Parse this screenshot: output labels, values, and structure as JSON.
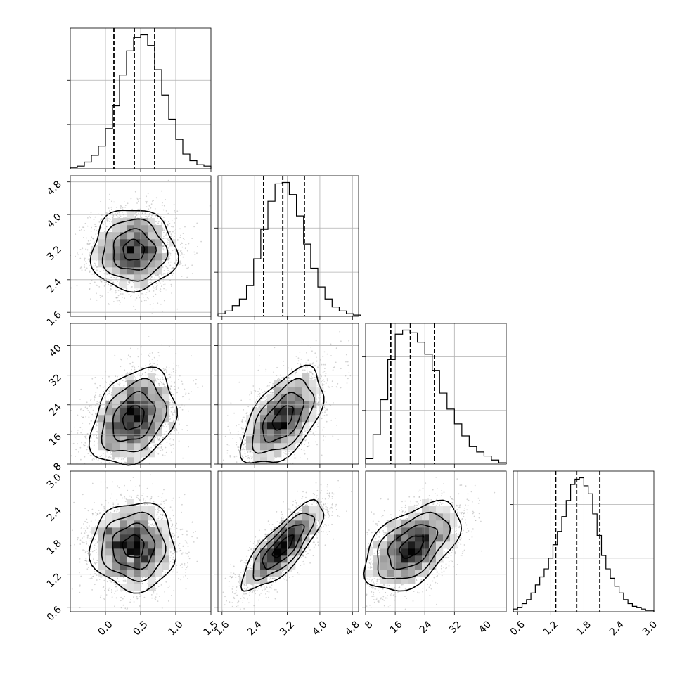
{
  "chart_data": {
    "type": "corner",
    "title": "",
    "parameters": [
      {
        "index": 0,
        "range": [
          -0.5,
          1.5
        ],
        "ticks": [
          0.0,
          0.5,
          1.0,
          1.5
        ],
        "tick_labels": [
          "0.0",
          "0.5",
          "1.0",
          "1.5"
        ],
        "quantiles": [
          0.12,
          0.41,
          0.7
        ]
      },
      {
        "index": 1,
        "range": [
          1.5,
          4.95
        ],
        "ticks": [
          1.6,
          2.4,
          3.2,
          4.0,
          4.8
        ],
        "tick_labels": [
          "1.6",
          "2.4",
          "3.2",
          "4.0",
          "4.8"
        ],
        "quantiles": [
          2.62,
          3.09,
          3.62
        ]
      },
      {
        "index": 2,
        "range": [
          8,
          46
        ],
        "ticks": [
          8,
          16,
          24,
          32,
          40
        ],
        "tick_labels": [
          "8",
          "16",
          "24",
          "32",
          "40"
        ],
        "quantiles": [
          14.8,
          20.1,
          26.6
        ]
      },
      {
        "index": 3,
        "range": [
          0.52,
          3.07
        ],
        "ticks": [
          0.6,
          1.2,
          1.8,
          2.4,
          3.0
        ],
        "tick_labels": [
          "0.6",
          "1.2",
          "1.8",
          "2.4",
          "3.0"
        ],
        "quantiles": [
          1.29,
          1.67,
          2.09
        ]
      }
    ],
    "histograms": [
      {
        "param": 0,
        "bin_edges": [
          -0.5,
          -0.4,
          -0.3,
          -0.2,
          -0.1,
          0.0,
          0.1,
          0.2,
          0.3,
          0.4,
          0.5,
          0.6,
          0.7,
          0.8,
          0.9,
          1.0,
          1.1,
          1.2,
          1.3,
          1.4,
          1.5
        ],
        "counts": [
          1,
          2,
          5,
          10,
          17,
          30,
          47,
          70,
          88,
          98,
          100,
          92,
          74,
          55,
          37,
          22,
          11,
          6,
          3,
          2
        ],
        "y_gridlines": [
          33,
          66
        ]
      },
      {
        "param": 1,
        "bin_edges": [
          1.5,
          1.675,
          1.85,
          2.025,
          2.2,
          2.375,
          2.55,
          2.725,
          2.9,
          3.075,
          3.25,
          3.425,
          3.6,
          3.775,
          3.95,
          4.125,
          4.3,
          4.475,
          4.65,
          4.825,
          5.0
        ],
        "counts": [
          2,
          4,
          8,
          13,
          23,
          43,
          65,
          86,
          99,
          100,
          91,
          75,
          54,
          36,
          22,
          13,
          7,
          4,
          2,
          1
        ],
        "y_gridlines": [
          33,
          66
        ]
      },
      {
        "param": 2,
        "bin_edges": [
          8,
          10,
          12,
          14,
          16,
          18,
          20,
          22,
          24,
          26,
          28,
          30,
          32,
          34,
          36,
          38,
          40,
          42,
          44,
          46
        ],
        "counts": [
          4,
          22,
          48,
          78,
          97,
          100,
          98,
          91,
          82,
          70,
          53,
          41,
          30,
          21,
          13,
          9,
          6,
          3,
          1
        ],
        "y_gridlines": [
          40,
          80
        ]
      },
      {
        "param": 3,
        "bin_edges": [
          0.52,
          0.6,
          0.68,
          0.76,
          0.84,
          0.92,
          1.0,
          1.08,
          1.16,
          1.24,
          1.32,
          1.4,
          1.48,
          1.56,
          1.64,
          1.72,
          1.8,
          1.88,
          1.96,
          2.04,
          2.12,
          2.2,
          2.28,
          2.36,
          2.44,
          2.52,
          2.6,
          2.68,
          2.76,
          2.84,
          2.92,
          3.0,
          3.07
        ],
        "counts": [
          2,
          3,
          6,
          9,
          14,
          20,
          26,
          32,
          40,
          50,
          60,
          71,
          83,
          95,
          99,
          100,
          94,
          88,
          73,
          57,
          42,
          32,
          25,
          19,
          14,
          9,
          6,
          4,
          3,
          2,
          1,
          1
        ],
        "y_gridlines": [
          40,
          80
        ]
      }
    ],
    "pairs": [
      {
        "x_param": 0,
        "y_param": 1,
        "mean": [
          0.4,
          3.12
        ],
        "std": [
          0.3,
          0.5
        ],
        "rho": 0.0
      },
      {
        "x_param": 0,
        "y_param": 2,
        "mean": [
          0.4,
          20.5
        ],
        "std": [
          0.3,
          6.5
        ],
        "rho": 0.3
      },
      {
        "x_param": 1,
        "y_param": 2,
        "mean": [
          3.1,
          20.5
        ],
        "std": [
          0.5,
          6.5
        ],
        "rho": 0.55
      },
      {
        "x_param": 0,
        "y_param": 3,
        "mean": [
          0.4,
          1.7
        ],
        "std": [
          0.3,
          0.4
        ],
        "rho": 0.0
      },
      {
        "x_param": 1,
        "y_param": 3,
        "mean": [
          3.1,
          1.7
        ],
        "std": [
          0.5,
          0.4
        ],
        "rho": 0.8
      },
      {
        "x_param": 2,
        "y_param": 3,
        "mean": [
          20.5,
          1.7
        ],
        "std": [
          6.5,
          0.4
        ],
        "rho": 0.5
      }
    ],
    "contour_levels_sigma": [
      0.5,
      1.0,
      1.5,
      2.0
    ],
    "grid": true,
    "colors": {
      "line": "#000000",
      "grid": "#b0b0b0",
      "points": "#9e9e9e",
      "density_max": "#000000",
      "density_min": "#ffffff"
    }
  }
}
